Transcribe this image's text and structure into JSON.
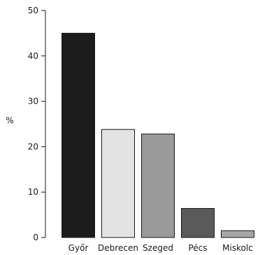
{
  "chart_data": {
    "type": "bar",
    "title": "",
    "xlabel": "",
    "ylabel": "%",
    "ylim": [
      0,
      50
    ],
    "yticks": [
      0,
      10,
      20,
      30,
      40,
      50
    ],
    "grid": false,
    "categories": [
      "Győr",
      "Debrecen",
      "Szeged",
      "Pécs",
      "Miskolc"
    ],
    "values": [
      45,
      23.8,
      22.8,
      6.4,
      1.5
    ],
    "colors": [
      "#1c1c1c",
      "#e3e3e3",
      "#9a9a9a",
      "#5a5a5a",
      "#a6a6a6"
    ]
  }
}
